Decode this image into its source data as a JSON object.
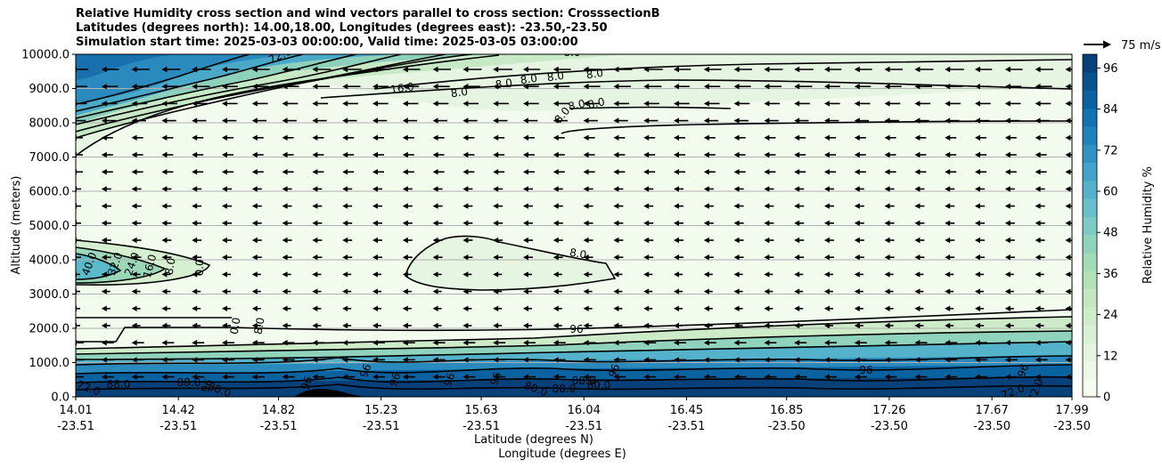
{
  "chart_data": {
    "type": "heatmap",
    "title_lines": [
      "Relative Humidity cross section and wind vectors parallel to cross section: CrosssectionB",
      "Latitudes (degrees north): 14.00,18.00, Longitudes (degrees east): -23.50,-23.50",
      "Simulation start time: 2025-03-03 00:00:00, Valid time: 2025-03-05 03:00:00"
    ],
    "ylabel": "Altitude (meters)",
    "xlabel_lat": "Latitude (degrees N)",
    "xlabel_lon": "Longitude (degrees E)",
    "ylim": [
      0,
      10000
    ],
    "y_ticks": [
      0,
      1000,
      2000,
      3000,
      4000,
      5000,
      6000,
      7000,
      8000,
      9000,
      10000
    ],
    "y_tick_labels": [
      "0.0",
      "1000.0",
      "2000.0",
      "3000.0",
      "4000.0",
      "5000.0",
      "6000.0",
      "7000.0",
      "8000.0",
      "9000.0",
      "10000.0"
    ],
    "x_ticks": [
      {
        "lat": "14.01",
        "lon": "-23.51"
      },
      {
        "lat": "14.42",
        "lon": "-23.51"
      },
      {
        "lat": "14.82",
        "lon": "-23.51"
      },
      {
        "lat": "15.23",
        "lon": "-23.51"
      },
      {
        "lat": "15.63",
        "lon": "-23.51"
      },
      {
        "lat": "16.04",
        "lon": "-23.51"
      },
      {
        "lat": "16.45",
        "lon": "-23.51"
      },
      {
        "lat": "16.85",
        "lon": "-23.50"
      },
      {
        "lat": "17.26",
        "lon": "-23.50"
      },
      {
        "lat": "17.67",
        "lon": "-23.50"
      },
      {
        "lat": "17.99",
        "lon": "-23.50"
      }
    ],
    "grid": "horizontal",
    "colorbar": {
      "label": "Relative Humidity %",
      "ticks": [
        0,
        12,
        24,
        36,
        48,
        60,
        72,
        84,
        96
      ],
      "vmin": 0,
      "vmax": 100,
      "colors": [
        "#f7fcf0",
        "#eef8e8",
        "#e4f4df",
        "#daf0d4",
        "#cfecca",
        "#c2e7c1",
        "#b3e1ba",
        "#a2dbb8",
        "#8fd3bd",
        "#7bcbc4",
        "#67c0c9",
        "#54b3cb",
        "#43a3ca",
        "#3293c3",
        "#2183bb",
        "#1372b0",
        "#0b62a1",
        "#08528d",
        "#084079"
      ]
    },
    "wind_reference": {
      "label": "75 m/s",
      "value": 75
    },
    "contour_labels": [
      "72.0",
      "8.0",
      "16.0",
      "8.0",
      "8.0",
      "8.0",
      "8.0",
      "8.0",
      "8.0",
      "8.0",
      "8.0",
      "8.0",
      "40.0",
      "32.0",
      "24.0",
      "16.0",
      "8.0",
      "0.0",
      "0.0",
      "8.0",
      "96",
      "96",
      "96",
      "96",
      "96",
      "88.0",
      "80.0",
      "72.0",
      "88.0",
      "96",
      "80.0",
      "96",
      "80.0",
      "88.0",
      "96",
      "80.0",
      "72.0",
      "72.0",
      "96",
      "96"
    ]
  }
}
